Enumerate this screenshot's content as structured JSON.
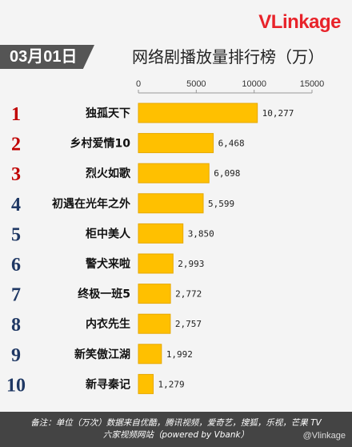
{
  "brand": {
    "logo_v": "V",
    "logo_rest": "Linkage"
  },
  "date_badge": "03月01日",
  "title": "网络剧播放量排行榜（万）",
  "footer": {
    "line1": "备注：单位（万次）数据来自优酷，腾讯视频，爱奇艺，搜狐，乐视，芒果 TV",
    "line2": "六家视频网站（powered by Vbank）",
    "watermark": "@Vlinkage"
  },
  "colors": {
    "bar": "#ffc000",
    "bar_edge": "#e6a800",
    "rank": "#c00000",
    "rank_other": "#1f3864"
  },
  "chart_data": {
    "type": "bar",
    "orientation": "horizontal",
    "title": "网络剧播放量排行榜（万）",
    "xlim": [
      0,
      15000
    ],
    "xticks": [
      0,
      5000,
      10000,
      15000
    ],
    "xtick_labels": [
      "0",
      "5000",
      "10000",
      "15000"
    ],
    "grid": false,
    "ranks": [
      "1",
      "2",
      "3",
      "4",
      "5",
      "6",
      "7",
      "8",
      "9",
      "10"
    ],
    "categories": [
      "独孤天下",
      "乡村爱情10",
      "烈火如歌",
      "初遇在光年之外",
      "柜中美人",
      "警犬来啦",
      "终极一班5",
      "内衣先生",
      "新笑傲江湖",
      "新寻秦记"
    ],
    "values": [
      10277,
      6468,
      6098,
      5599,
      3850,
      2993,
      2772,
      2757,
      1992,
      1279
    ],
    "value_labels": [
      "10,277",
      "6,468",
      "6,098",
      "5,599",
      "3,850",
      "2,993",
      "2,772",
      "2,757",
      "1,992",
      "1,279"
    ]
  }
}
